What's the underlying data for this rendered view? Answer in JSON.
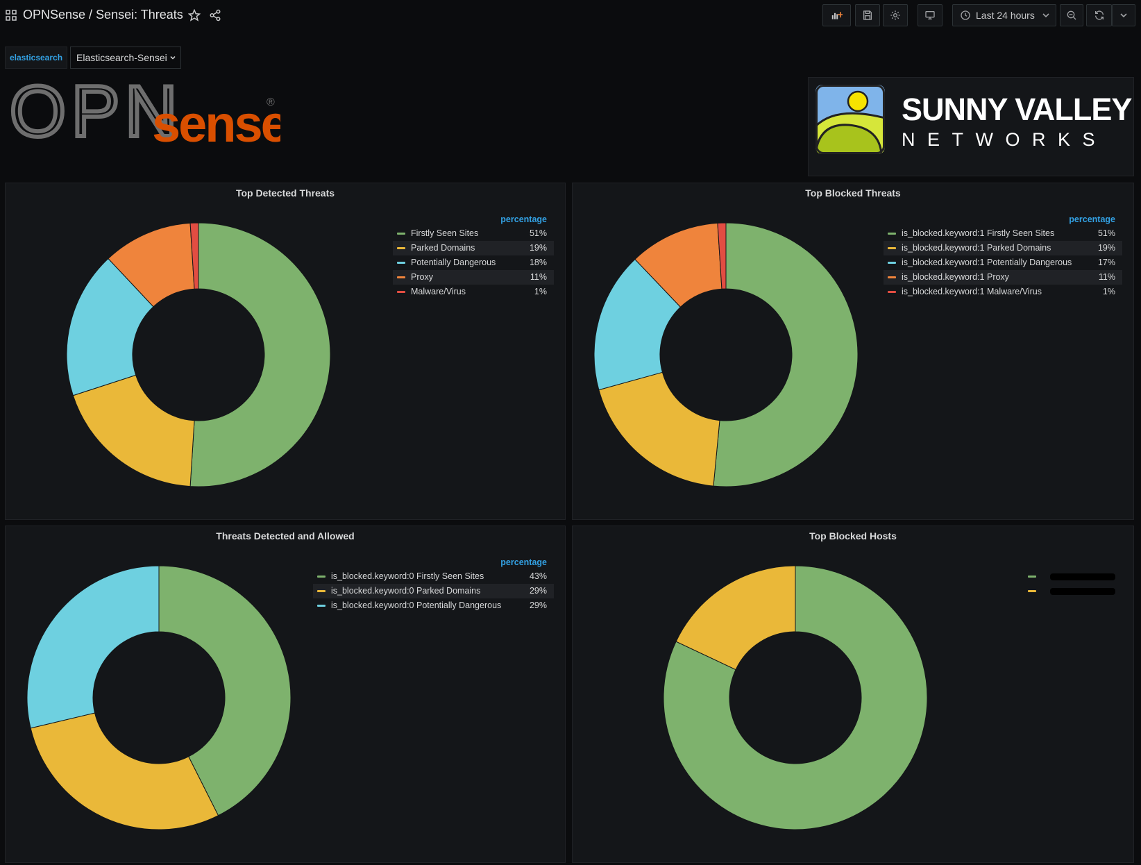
{
  "header": {
    "title": "OPNSense / Sensei: Threats",
    "time_range": "Last 24 hours"
  },
  "variables": {
    "datasource_label": "elasticsearch",
    "datasource_value": "Elasticsearch-Sensei"
  },
  "logos": {
    "opnsense_text_left": "OPN",
    "opnsense_text_right": "sense",
    "opnsense_registered": "®",
    "vendor_name": "SUNNY VALLEY",
    "vendor_sub": "NETWORKS"
  },
  "colors": {
    "green": "#7eb26d",
    "yellow": "#eab839",
    "cyan": "#6ed0e0",
    "orange": "#ef843c",
    "red": "#e24d42",
    "accent": "#33a2e5"
  },
  "icons": [
    "apps-icon",
    "star-icon",
    "share-icon",
    "add-panel-icon",
    "save-icon",
    "settings-icon",
    "tv-mode-icon",
    "clock-icon",
    "chevron-down-icon",
    "zoom-out-icon",
    "refresh-icon"
  ],
  "panels": [
    {
      "title": "Top Detected Threats",
      "legend_header": "percentage",
      "chart_data": {
        "type": "pie",
        "categories": [
          "Firstly Seen Sites",
          "Parked Domains",
          "Potentially Dangerous",
          "Proxy",
          "Malware/Virus"
        ],
        "labels": [
          "51%",
          "19%",
          "18%",
          "11%",
          "1%"
        ],
        "values": [
          51,
          19,
          18,
          11,
          1
        ]
      }
    },
    {
      "title": "Top Blocked Threats",
      "legend_header": "percentage",
      "chart_data": {
        "type": "pie",
        "categories": [
          "is_blocked.keyword:1 Firstly Seen Sites",
          "is_blocked.keyword:1 Parked Domains",
          "is_blocked.keyword:1 Potentially Dangerous",
          "is_blocked.keyword:1 Proxy",
          "is_blocked.keyword:1 Malware/Virus"
        ],
        "labels": [
          "51%",
          "19%",
          "17%",
          "11%",
          "1%"
        ],
        "values": [
          51,
          19,
          17,
          11,
          1
        ]
      }
    },
    {
      "title": "Threats Detected and Allowed",
      "legend_header": "percentage",
      "chart_data": {
        "type": "pie",
        "categories": [
          "is_blocked.keyword:0 Firstly Seen Sites",
          "is_blocked.keyword:0 Parked Domains",
          "is_blocked.keyword:0 Potentially Dangerous"
        ],
        "labels": [
          "43%",
          "29%",
          "29%"
        ],
        "values": [
          43,
          29,
          29
        ]
      }
    },
    {
      "title": "Top Blocked Hosts",
      "legend_header": "",
      "chart_data": {
        "type": "pie",
        "categories": [
          "",
          ""
        ],
        "labels": [
          "",
          ""
        ],
        "values": [
          82,
          18
        ]
      }
    }
  ]
}
